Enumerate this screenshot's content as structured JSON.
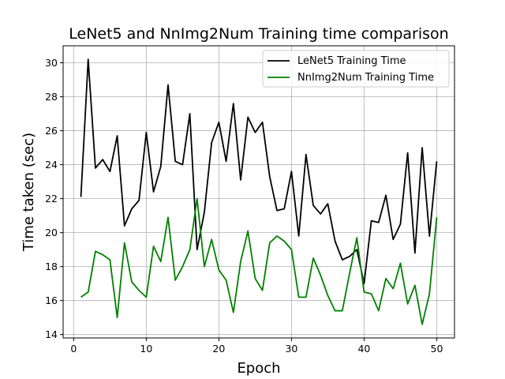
{
  "chart_data": {
    "type": "line",
    "title": "LeNet5 and NnImg2Num Training time comparison",
    "xlabel": "Epoch",
    "ylabel": "Time taken (sec)",
    "xlim": [
      -1.45,
      52.45
    ],
    "ylim": [
      13.8,
      31.0
    ],
    "xticks": [
      0,
      10,
      20,
      30,
      40,
      50
    ],
    "yticks": [
      14,
      16,
      18,
      20,
      22,
      24,
      26,
      28,
      30
    ],
    "grid": true,
    "legend_position": "top-right",
    "x": [
      1,
      2,
      3,
      4,
      5,
      6,
      7,
      8,
      9,
      10,
      11,
      12,
      13,
      14,
      15,
      16,
      17,
      18,
      19,
      20,
      21,
      22,
      23,
      24,
      25,
      26,
      27,
      28,
      29,
      30,
      31,
      32,
      33,
      34,
      35,
      36,
      37,
      38,
      39,
      40,
      41,
      42,
      43,
      44,
      45,
      46,
      47,
      48,
      49,
      50
    ],
    "series": [
      {
        "name": "LeNet5 Training Time",
        "color": "#000000",
        "values": [
          22.1,
          30.2,
          23.8,
          24.3,
          23.6,
          25.7,
          20.4,
          21.4,
          21.9,
          25.9,
          22.4,
          23.9,
          28.7,
          24.2,
          24.0,
          27.0,
          19.0,
          21.2,
          25.3,
          26.5,
          24.2,
          27.6,
          23.1,
          26.8,
          25.9,
          26.5,
          23.3,
          21.3,
          21.4,
          23.6,
          19.8,
          24.6,
          21.6,
          21.1,
          21.7,
          19.5,
          18.4,
          18.6,
          19.0,
          17.0,
          20.7,
          20.6,
          22.2,
          19.6,
          20.5,
          24.7,
          18.8,
          25.0,
          19.8,
          24.2
        ]
      },
      {
        "name": "NnImg2Num Training Time",
        "color": "#008000",
        "values": [
          16.2,
          16.5,
          18.9,
          18.7,
          18.4,
          15.0,
          19.4,
          17.1,
          16.6,
          16.2,
          19.2,
          18.3,
          20.9,
          17.2,
          18.0,
          19.0,
          22.0,
          18.0,
          19.6,
          17.8,
          17.2,
          15.3,
          18.3,
          20.1,
          17.3,
          16.6,
          19.4,
          19.8,
          19.5,
          19.0,
          16.2,
          16.2,
          18.5,
          17.5,
          16.3,
          15.4,
          15.4,
          17.6,
          19.7,
          16.5,
          16.4,
          15.4,
          17.3,
          16.7,
          18.2,
          15.8,
          16.9,
          14.6,
          16.4,
          20.9
        ]
      }
    ]
  }
}
